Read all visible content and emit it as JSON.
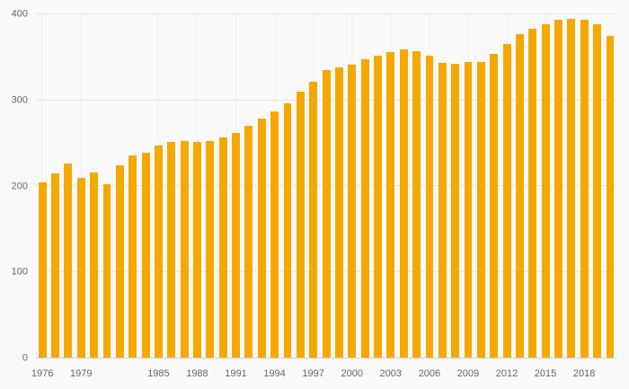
{
  "chart": {
    "background": "#f9f9f9",
    "bar_color": "#F5A800",
    "grid_color": "#e5e5e5",
    "axis_text_color": "#666666"
  },
  "chart_data": {
    "type": "bar",
    "title": "",
    "xlabel": "",
    "ylabel": "",
    "ylim": [
      0,
      400
    ],
    "yticks": [
      0,
      100,
      200,
      300,
      400
    ],
    "xticks": [
      1976,
      1979,
      1985,
      1988,
      1991,
      1994,
      1997,
      2000,
      2003,
      2006,
      2009,
      2012,
      2015,
      2018
    ],
    "grid": true,
    "legend": null,
    "x": [
      1976,
      1977,
      1978,
      1979,
      1980,
      1981,
      1982,
      1983,
      1984,
      1985,
      1986,
      1987,
      1988,
      1989,
      1990,
      1991,
      1992,
      1993,
      1994,
      1995,
      1996,
      1997,
      1998,
      1999,
      2000,
      2001,
      2002,
      2003,
      2004,
      2005,
      2006,
      2007,
      2008,
      2009,
      2010,
      2011,
      2012,
      2013,
      2014,
      2015,
      2016,
      2017,
      2018,
      2019,
      2020
    ],
    "values": [
      204,
      215,
      226,
      209,
      216,
      202,
      224,
      236,
      239,
      247,
      251,
      252,
      251,
      252,
      257,
      262,
      270,
      279,
      287,
      296,
      310,
      322,
      335,
      338,
      341,
      348,
      352,
      356,
      359,
      357,
      352,
      343,
      342,
      344,
      345,
      354,
      365,
      377,
      383,
      388,
      394,
      395,
      394,
      388,
      375
    ]
  }
}
